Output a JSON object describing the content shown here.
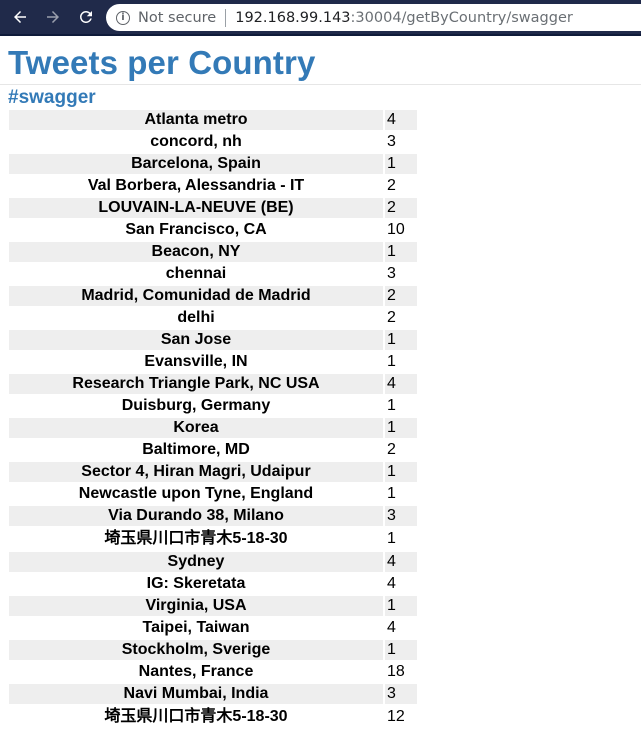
{
  "browser": {
    "security_label": "Not secure",
    "url_host": "192.168.99.143",
    "url_rest": ":30004/getByCountry/swagger"
  },
  "page": {
    "title": "Tweets per Country",
    "subtitle": "#swagger"
  },
  "rows": [
    {
      "location": "Atlanta metro",
      "count": "4"
    },
    {
      "location": "concord, nh",
      "count": "3"
    },
    {
      "location": "Barcelona, Spain",
      "count": "1"
    },
    {
      "location": "Val Borbera, Alessandria - IT",
      "count": "2"
    },
    {
      "location": "LOUVAIN-LA-NEUVE (BE)",
      "count": "2"
    },
    {
      "location": "San Francisco, CA",
      "count": "10"
    },
    {
      "location": "Beacon, NY",
      "count": "1"
    },
    {
      "location": "chennai",
      "count": "3"
    },
    {
      "location": "Madrid, Comunidad de Madrid",
      "count": "2"
    },
    {
      "location": "delhi",
      "count": "2"
    },
    {
      "location": "San Jose",
      "count": "1"
    },
    {
      "location": "Evansville, IN",
      "count": "1"
    },
    {
      "location": "Research Triangle Park, NC USA",
      "count": "4"
    },
    {
      "location": "Duisburg, Germany",
      "count": "1"
    },
    {
      "location": "Korea",
      "count": "1"
    },
    {
      "location": "Baltimore, MD",
      "count": "2"
    },
    {
      "location": "Sector 4, Hiran Magri, Udaipur",
      "count": "1"
    },
    {
      "location": "Newcastle upon Tyne, England",
      "count": "1"
    },
    {
      "location": "Via Durando 38, Milano",
      "count": "3"
    },
    {
      "location": "埼玉県川口市青木5-18-30",
      "count": "1"
    },
    {
      "location": "Sydney",
      "count": "4"
    },
    {
      "location": "IG: Skeretata",
      "count": "4"
    },
    {
      "location": "Virginia, USA",
      "count": "1"
    },
    {
      "location": "Taipei, Taiwan",
      "count": "4"
    },
    {
      "location": "Stockholm, Sverige",
      "count": "1"
    },
    {
      "location": "Nantes, France",
      "count": "18"
    },
    {
      "location": "Navi Mumbai, India",
      "count": "3"
    },
    {
      "location": "埼玉県川口市青木5-18-30",
      "count": "12"
    }
  ]
}
